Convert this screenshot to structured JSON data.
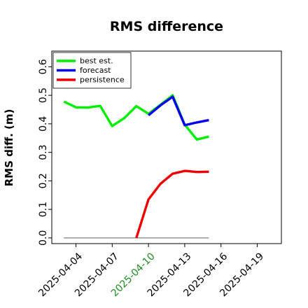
{
  "chart_data": {
    "type": "line",
    "title": "RMS difference",
    "ylabel": "RMS diff. (m)",
    "xlabel": "",
    "ylim": [
      -0.02,
      0.655
    ],
    "xlim": [
      "2025-04-02",
      "2025-04-21"
    ],
    "yticks": [
      "0.0",
      "0.1",
      "0.2",
      "0.3",
      "0.4",
      "0.5",
      "0.6"
    ],
    "xticks": [
      {
        "date": "2025-04-04",
        "label": "2025-04-04",
        "color": "#000000"
      },
      {
        "date": "2025-04-07",
        "label": "2025-04-07",
        "color": "#000000"
      },
      {
        "date": "2025-04-10",
        "label": "2025-04-10",
        "color": "#228b22"
      },
      {
        "date": "2025-04-13",
        "label": "2025-04-13",
        "color": "#000000"
      },
      {
        "date": "2025-04-16",
        "label": "2025-04-16",
        "color": "#000000"
      },
      {
        "date": "2025-04-19",
        "label": "2025-04-19",
        "color": "#000000"
      }
    ],
    "legend_position": "top-left",
    "grid": false,
    "series": [
      {
        "name": "best est.",
        "color": "#00ee00",
        "points": [
          [
            "2025-04-03",
            0.478
          ],
          [
            "2025-04-04",
            0.458
          ],
          [
            "2025-04-05",
            0.457
          ],
          [
            "2025-04-06",
            0.463
          ],
          [
            "2025-04-07",
            0.392
          ],
          [
            "2025-04-08",
            0.42
          ],
          [
            "2025-04-09",
            0.462
          ],
          [
            "2025-04-10",
            0.435
          ],
          [
            "2025-04-11",
            0.467
          ],
          [
            "2025-04-12",
            0.5
          ],
          [
            "2025-04-13",
            0.397
          ],
          [
            "2025-04-14",
            0.345
          ],
          [
            "2025-04-15",
            0.355
          ]
        ]
      },
      {
        "name": "forecast",
        "color": "#0000ee",
        "points": [
          [
            "2025-04-10",
            0.43
          ],
          [
            "2025-04-11",
            0.465
          ],
          [
            "2025-04-12",
            0.495
          ],
          [
            "2025-04-13",
            0.395
          ],
          [
            "2025-04-14",
            0.405
          ],
          [
            "2025-04-15",
            0.413
          ]
        ]
      },
      {
        "name": "persistence",
        "color": "#ee0000",
        "points": [
          [
            "2025-04-09",
            0.0
          ],
          [
            "2025-04-10",
            0.135
          ],
          [
            "2025-04-11",
            0.19
          ],
          [
            "2025-04-12",
            0.225
          ],
          [
            "2025-04-13",
            0.235
          ],
          [
            "2025-04-14",
            0.231
          ],
          [
            "2025-04-15",
            0.232
          ]
        ]
      }
    ],
    "reference_line": {
      "color": "#808080",
      "points": [
        [
          "2025-04-03",
          0.0
        ],
        [
          "2025-04-15",
          0.0
        ]
      ]
    }
  }
}
